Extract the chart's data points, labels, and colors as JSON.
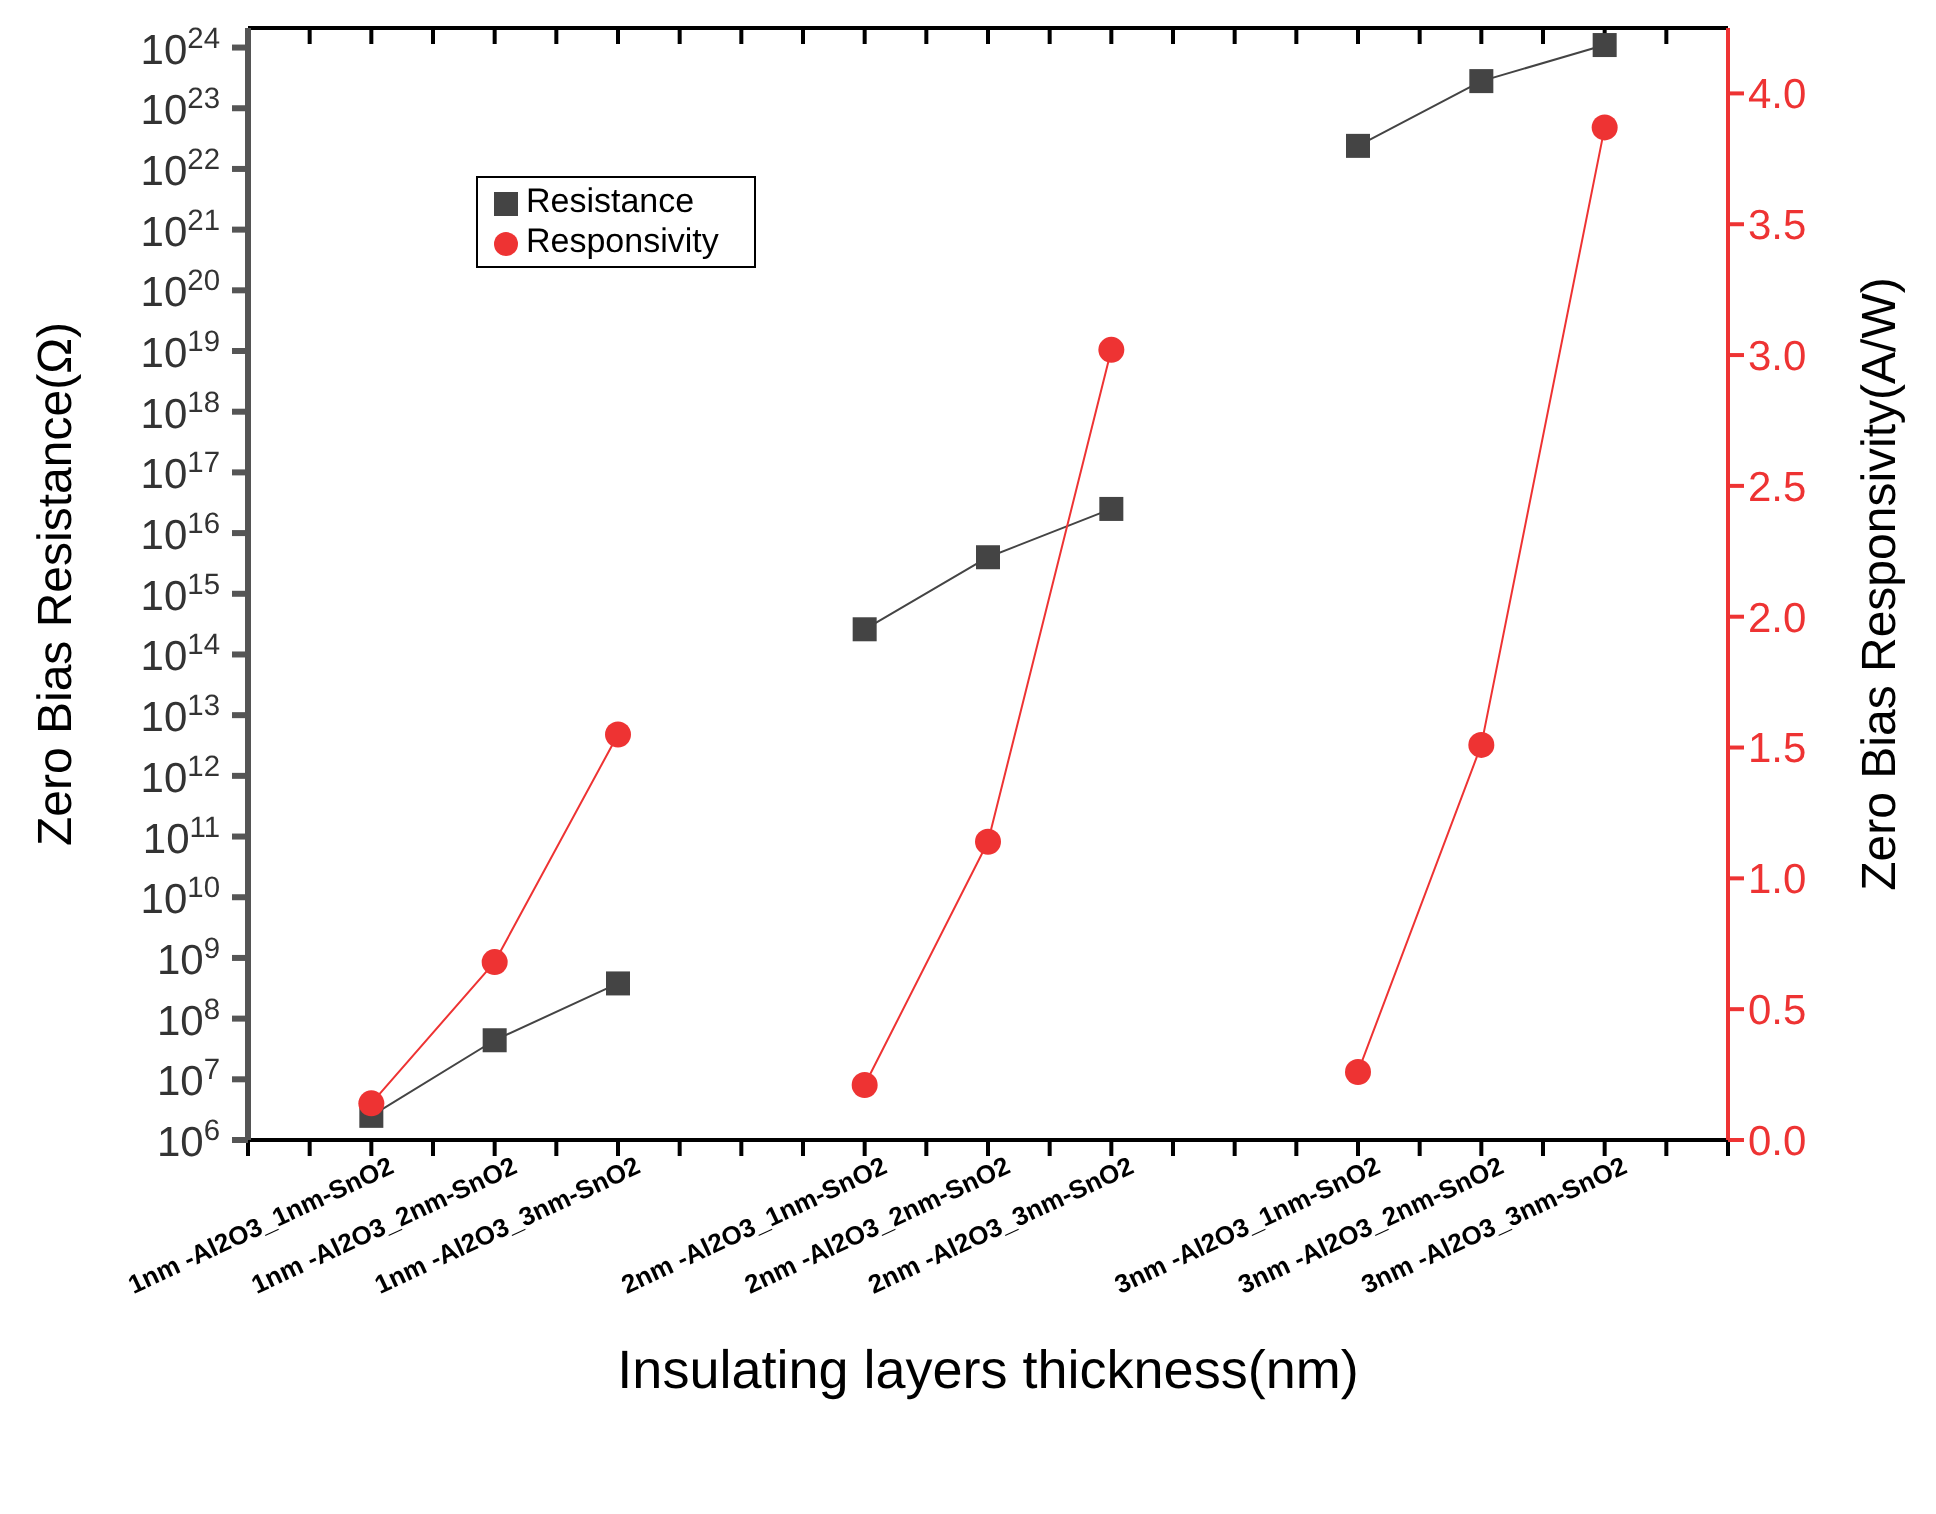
{
  "chart_data": {
    "type": "line",
    "xlabel": "Insulating layers thickness(nm)",
    "ylabel": "Zero Bias Resistance(Ω)",
    "y2label": "Zero Bias Responsivity(A/W)",
    "categories": [
      null,
      "1nm -Al2O3_1nm-SnO2",
      "1nm -Al2O3_2nm-SnO2",
      "1nm -Al2O3_3nm-SnO2",
      null,
      "2nm -Al2O3_1nm-SnO2",
      "2nm -Al2O3_2nm-SnO2",
      "2nm -Al2O3_3nm-SnO2",
      null,
      "3nm -Al2O3_1nm-SnO2",
      "3nm -Al2O3_2nm-SnO2",
      "3nm -Al2O3_3nm-SnO2",
      null
    ],
    "series": [
      {
        "name": "Resistance",
        "color": "#444444",
        "marker": "square",
        "values": [
          null,
          2500000.0,
          44000000.0,
          380000000.0,
          null,
          260000000000000.0,
          4000000000000000.0,
          2.5e+16,
          null,
          2.4e+22,
          2.8e+23,
          1.1e+24,
          null
        ]
      },
      {
        "name": "Responsivity",
        "color": "#ee3333",
        "marker": "circle",
        "axis": "y2",
        "values": [
          null,
          0.14,
          0.68,
          1.55,
          null,
          0.21,
          1.14,
          3.02,
          null,
          0.26,
          1.51,
          3.87,
          null
        ]
      }
    ],
    "log": "y",
    "ylim": [
      1000000.0,
      2.1e+24
    ],
    "yticks": [
      {
        "value": 1000000.0,
        "label": "10$^{6}$"
      },
      {
        "value": 10000000.0,
        "label": "10$^{7}$"
      },
      {
        "value": 100000000.0,
        "label": "10$^{8}$"
      },
      {
        "value": 1000000000.0,
        "label": "10$^{9}$"
      },
      {
        "value": 10000000000.0,
        "label": "10$^{10}$"
      },
      {
        "value": 100000000000.0,
        "label": "10$^{11}$"
      },
      {
        "value": 1000000000000.0,
        "label": "10$^{12}$"
      },
      {
        "value": 10000000000000.0,
        "label": "10$^{13}$"
      },
      {
        "value": 100000000000000.0,
        "label": "10$^{14}$"
      },
      {
        "value": 1000000000000000.0,
        "label": "10$^{15}$"
      },
      {
        "value": 1e+16,
        "label": "10$^{16}$"
      },
      {
        "value": 1e+17,
        "label": "10$^{17}$"
      },
      {
        "value": 1e+18,
        "label": "10$^{18}$"
      },
      {
        "value": 1e+19,
        "label": "10$^{19}$"
      },
      {
        "value": 1e+20,
        "label": "10$^{20}$"
      },
      {
        "value": 1e+21,
        "label": "10$^{21}$"
      },
      {
        "value": 1e+22,
        "label": "10$^{22}$"
      },
      {
        "value": 1e+23,
        "label": "10$^{23}$"
      },
      {
        "value": 1e+24,
        "label": "10$^{24}$"
      }
    ],
    "y2lim": [
      0,
      4.25
    ],
    "y2ticks": [
      {
        "value": 0,
        "label": "0.0"
      },
      {
        "value": 0.5,
        "label": "0.5"
      },
      {
        "value": 1,
        "label": "1.0"
      },
      {
        "value": 1.5,
        "label": "1.5"
      },
      {
        "value": 2,
        "label": "2.0"
      },
      {
        "value": 2.5,
        "label": "2.5"
      },
      {
        "value": 3,
        "label": "3.0"
      },
      {
        "value": 3.5,
        "label": "3.5"
      },
      {
        "value": 4,
        "label": "4.0"
      }
    ],
    "grid": false,
    "legend": "top left",
    "line_style": "solid"
  }
}
